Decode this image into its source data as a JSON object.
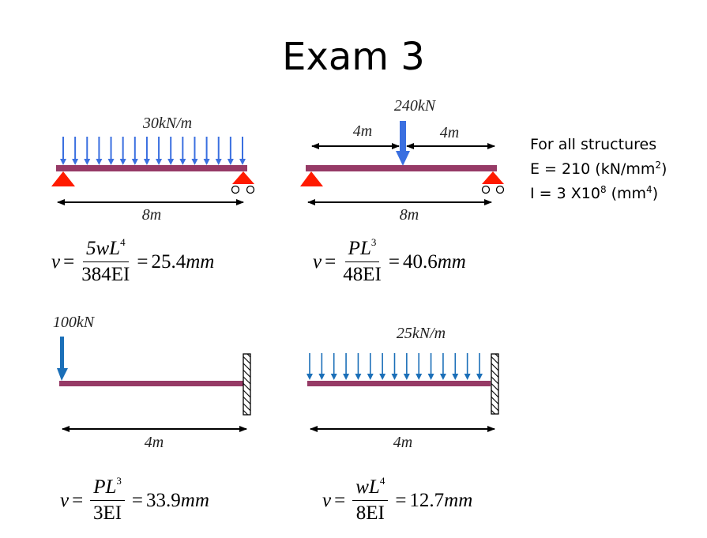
{
  "title": "Exam 3",
  "properties": {
    "heading": "For all structures",
    "E_label": "E = 210 (kN/mm",
    "E_exp": "2",
    "E_close": ")",
    "I_label": "I = 3 X10",
    "I_exp": "8",
    "I_unit_open": " (mm",
    "I_unit_exp": "4",
    "I_close": ")"
  },
  "colors": {
    "beam": "#963a66",
    "udl_arrow": "#3a6fe0",
    "point_load": "#3a6fe0",
    "cantilever_arrow": "#1b6fb8",
    "support": "#ff0000",
    "dimension": "#000000"
  },
  "diagrams": [
    {
      "id": "simply-supported-udl",
      "load_label": "30kN/m",
      "span_label": "8m",
      "formula": {
        "lhs": "v",
        "num_main": "5wL",
        "num_exp": "4",
        "den": "384EI",
        "result_num": "25.4",
        "result_unit": "mm"
      }
    },
    {
      "id": "simply-supported-point",
      "load_label": "240kN",
      "left_segment": "4m",
      "right_segment": "4m",
      "span_label": "8m",
      "formula": {
        "lhs": "v",
        "num_main": "PL",
        "num_exp": "3",
        "den": "48EI",
        "result_num": "40.6",
        "result_unit": "mm"
      }
    },
    {
      "id": "cantilever-point",
      "load_label": "100kN",
      "span_label": "4m",
      "formula": {
        "lhs": "v",
        "num_main": "PL",
        "num_exp": "3",
        "den": "3EI",
        "result_num": "33.9",
        "result_unit": "mm"
      }
    },
    {
      "id": "cantilever-udl",
      "load_label": "25kN/m",
      "span_label": "4m",
      "formula": {
        "lhs": "v",
        "num_main": "wL",
        "num_exp": "4",
        "den": "8EI",
        "result_num": "12.7",
        "result_unit": "mm"
      }
    }
  ],
  "symbols": {
    "equals": "="
  }
}
